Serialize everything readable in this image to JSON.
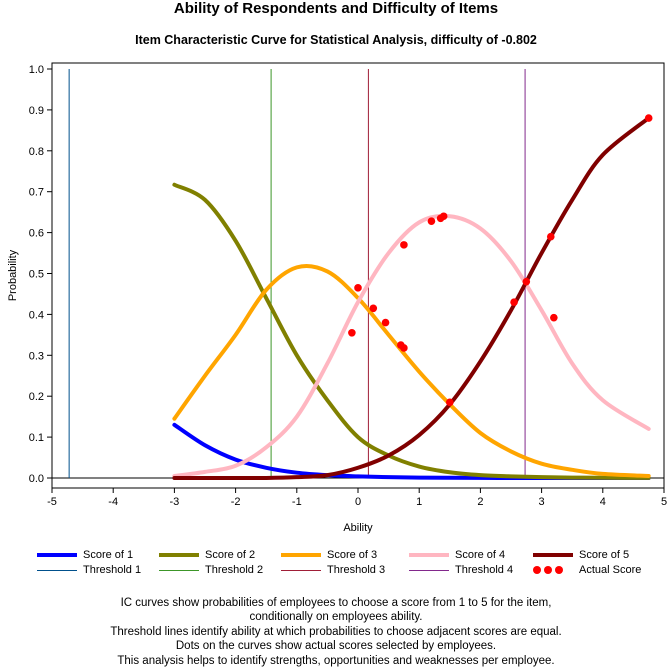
{
  "title": "Ability of Respondents and Difficulty of Items",
  "subtitle": "Item Characteristic Curve for Statistical Analysis, difficulty of -0.802",
  "footnotes": [
    "IC curves show probabilities of employees to choose a score from 1 to 5 for the item,",
    "conditionally on employees ability.",
    "Threshold lines identify ability at which probabilities to choose adjacent scores are equal.",
    "Dots on the curves show actual scores selected by employees.",
    "This analysis helps to identify strengths, opportunities and weaknesses per employee."
  ],
  "legend": {
    "placement": "bottom",
    "items": [
      {
        "label": "Score of 1",
        "color": "#0000ff",
        "kind": "thick-line"
      },
      {
        "label": "Score of 2",
        "color": "#808000",
        "kind": "thick-line"
      },
      {
        "label": "Score of 3",
        "color": "#ffa500",
        "kind": "thick-line"
      },
      {
        "label": "Score of 4",
        "color": "#ffb6c1",
        "kind": "thick-line"
      },
      {
        "label": "Score of 5",
        "color": "#800000",
        "kind": "thick-line"
      },
      {
        "label": "Threshold 1",
        "color": "#00508c",
        "kind": "thin-line"
      },
      {
        "label": "Threshold 2",
        "color": "#3c9628",
        "kind": "thin-line"
      },
      {
        "label": "Threshold 3",
        "color": "#a01e37",
        "kind": "thin-line"
      },
      {
        "label": "Threshold 4",
        "color": "#82288c",
        "kind": "thin-line"
      },
      {
        "label": "Actual Score",
        "color": "#ff0000",
        "kind": "dots"
      }
    ]
  },
  "chart_data": {
    "type": "line",
    "xlabel": "Ability",
    "ylabel": "Probability",
    "xlim": [
      -5,
      5
    ],
    "ylim": [
      0,
      1
    ],
    "xticks": [
      "-5",
      "-4",
      "-3",
      "-2",
      "-1",
      "0",
      "1",
      "2",
      "3",
      "4",
      "5"
    ],
    "yticks": [
      "0.0",
      "0.1",
      "0.2",
      "0.3",
      "0.4",
      "0.5",
      "0.6",
      "0.7",
      "0.8",
      "0.9",
      "1.0"
    ],
    "grid": false,
    "curve_x": [
      -3,
      -2.5,
      -2,
      -1.5,
      -1,
      -0.5,
      0,
      0.5,
      1,
      1.5,
      2,
      2.5,
      3,
      3.5,
      4,
      4.75
    ],
    "series": [
      {
        "name": "Score of 1",
        "color": "#0000ff",
        "values": [
          0.13,
          0.08,
          0.045,
          0.025,
          0.013,
          0.007,
          0.004,
          0.002,
          0.001,
          0.0005,
          0.0002,
          0.0001,
          0,
          0,
          0,
          0
        ]
      },
      {
        "name": "Score of 2",
        "color": "#808000",
        "values": [
          0.717,
          0.68,
          0.58,
          0.44,
          0.3,
          0.19,
          0.1,
          0.055,
          0.028,
          0.014,
          0.007,
          0.004,
          0.002,
          0.001,
          0.0005,
          0.0002
        ]
      },
      {
        "name": "Score of 3",
        "color": "#ffa500",
        "values": [
          0.145,
          0.25,
          0.35,
          0.46,
          0.515,
          0.505,
          0.44,
          0.35,
          0.26,
          0.18,
          0.11,
          0.065,
          0.035,
          0.02,
          0.01,
          0.005
        ]
      },
      {
        "name": "Score of 4",
        "color": "#ffb6c1",
        "values": [
          0.005,
          0.015,
          0.03,
          0.075,
          0.15,
          0.28,
          0.43,
          0.55,
          0.625,
          0.64,
          0.61,
          0.53,
          0.41,
          0.28,
          0.19,
          0.12
        ]
      },
      {
        "name": "Score of 5",
        "color": "#800000",
        "values": [
          0,
          0,
          0,
          0,
          0.002,
          0.007,
          0.025,
          0.055,
          0.105,
          0.18,
          0.285,
          0.41,
          0.55,
          0.68,
          0.79,
          0.88
        ]
      }
    ],
    "thresholds": [
      {
        "name": "Threshold 1",
        "x": -4.72,
        "color": "#00508c"
      },
      {
        "name": "Threshold 2",
        "x": -1.42,
        "color": "#3c9628"
      },
      {
        "name": "Threshold 3",
        "x": 0.17,
        "color": "#a01e37"
      },
      {
        "name": "Threshold 4",
        "x": 2.73,
        "color": "#82288c"
      }
    ],
    "actual_scores": {
      "name": "Actual Score",
      "color": "#ff0000",
      "points": [
        [
          -0.1,
          0.355
        ],
        [
          0.0,
          0.465
        ],
        [
          0.25,
          0.415
        ],
        [
          0.45,
          0.38
        ],
        [
          0.7,
          0.325
        ],
        [
          0.75,
          0.318
        ],
        [
          0.75,
          0.57
        ],
        [
          1.2,
          0.628
        ],
        [
          1.35,
          0.635
        ],
        [
          1.4,
          0.64
        ],
        [
          1.5,
          0.185
        ],
        [
          2.55,
          0.43
        ],
        [
          2.75,
          0.48
        ],
        [
          3.15,
          0.59
        ],
        [
          3.2,
          0.392
        ],
        [
          4.75,
          0.88
        ]
      ]
    }
  }
}
